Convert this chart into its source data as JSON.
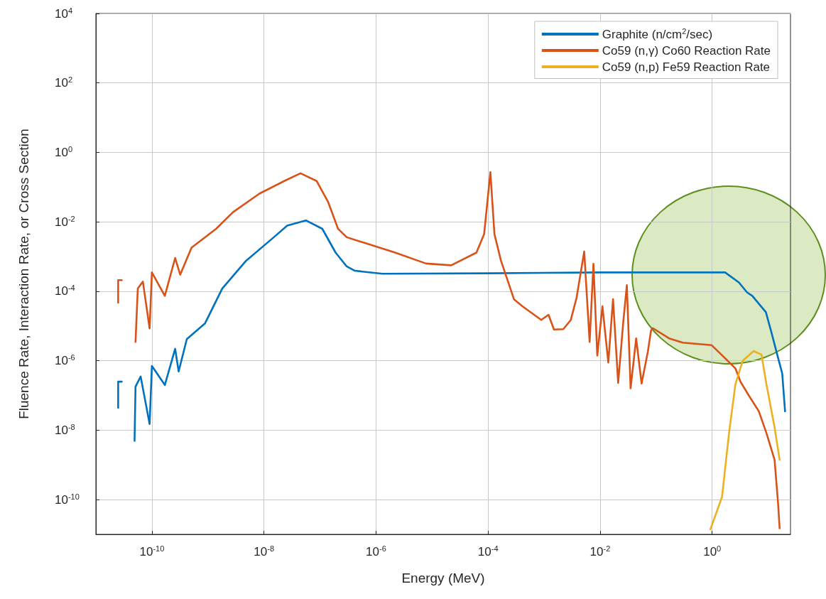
{
  "chart_data": {
    "type": "line",
    "xlabel": "Energy (MeV)",
    "ylabel": "Fluence Rate, Interaction Rate, or Cross Section",
    "log": "xy",
    "grid": true,
    "legend": "top right",
    "marker": "none",
    "line_style": "solid",
    "xlim": [
      1e-11,
      25
    ],
    "ylim": [
      1e-11,
      10000
    ],
    "xticks": [
      {
        "value": 1e-10,
        "label": "10$^{-10}$"
      },
      {
        "value": 1e-08,
        "label": "10$^{-8}$"
      },
      {
        "value": 1e-06,
        "label": "10$^{-6}$"
      },
      {
        "value": 0.0001,
        "label": "10$^{-4}$"
      },
      {
        "value": 0.01,
        "label": "10$^{-2}$"
      },
      {
        "value": 1,
        "label": "10$^{0}$"
      }
    ],
    "yticks": [
      {
        "value": 1e-10,
        "label": "10$^{-10}$"
      },
      {
        "value": 1e-08,
        "label": "10$^{-8}$"
      },
      {
        "value": 1e-06,
        "label": "10$^{-6}$"
      },
      {
        "value": 0.0001,
        "label": "10$^{-4}$"
      },
      {
        "value": 0.01,
        "label": "10$^{-2}$"
      },
      {
        "value": 1,
        "label": "10$^{0}$"
      },
      {
        "value": 100,
        "label": "10$^{2}$"
      },
      {
        "value": 10000,
        "label": "10$^{4}$"
      }
    ],
    "series": [
      {
        "name": "Graphite (n/cm$^{2}$/sec)",
        "color": "#0072bd",
        "x": [
          2.5e-11,
          2.5e-11,
          2.9e-11,
          4e-11,
          4.9e-11,
          5.1e-11,
          6.3e-11,
          9.1e-11,
          1e-10,
          1.7e-10,
          2.6e-10,
          3e-10,
          4.2e-10,
          8.9e-10,
          1.8e-09,
          4.8e-09,
          1.5e-08,
          2.6e-08,
          5.6e-08,
          1.1e-07,
          1.9e-07,
          3e-07,
          4.2e-07,
          1.3e-06,
          0.0001,
          0.01,
          1.7,
          3.0,
          4.2,
          5.2,
          9.1,
          11.5,
          14.5,
          17.8,
          20
        ],
        "values": [
          4.4e-08,
          2.5e-07,
          2.5e-07,
          null,
          4.9e-09,
          1.8e-07,
          3.5e-07,
          1.5e-08,
          7.1e-07,
          2e-07,
          2.2e-06,
          4.9e-07,
          4.2e-06,
          1.2e-05,
          0.00012,
          0.00076,
          0.0036,
          0.0078,
          0.011,
          0.0063,
          0.0013,
          0.00052,
          0.00039,
          0.00032,
          0.00033,
          0.00035,
          0.00035,
          0.00018,
          9.3e-05,
          7.4e-05,
          2.5e-05,
          6.3e-06,
          1.5e-06,
          4.3e-07,
          3.5e-08
        ]
      },
      {
        "name": "Co59 (n,γ) Co60 Reaction Rate",
        "color": "#d95319",
        "x": [
          2.5e-11,
          2.5e-11,
          2.9e-11,
          4e-11,
          5.1e-11,
          5.6e-11,
          6.9e-11,
          9.1e-11,
          1e-10,
          1.7e-10,
          2.6e-10,
          3.2e-10,
          5.1e-10,
          1.4e-09,
          2.8e-09,
          8.3e-09,
          2.3e-08,
          4.5e-08,
          8.7e-08,
          1.4e-07,
          2.1e-07,
          3e-07,
          2.2e-06,
          7.8e-06,
          2.2e-05,
          6.2e-05,
          8.5e-05,
          0.00011,
          0.00013,
          0.00017,
          0.00029,
          0.00041,
          0.00089,
          0.0012,
          0.0015,
          0.0022,
          0.003,
          0.0038,
          0.0052,
          0.0065,
          0.0076,
          0.0089,
          0.011,
          0.014,
          0.017,
          0.021,
          0.026,
          0.03,
          0.035,
          0.044,
          0.055,
          0.071,
          0.081,
          0.087,
          0.17,
          0.3,
          0.98,
          1.6,
          2.6,
          3.2,
          4.5,
          6.8,
          9.3,
          13,
          15,
          16
        ],
        "values": [
          4.7e-05,
          0.00021,
          0.00021,
          null,
          3.5e-06,
          0.00012,
          0.00019,
          8.5e-06,
          0.00035,
          7.4e-05,
          0.00091,
          0.0003,
          0.0018,
          0.0063,
          0.019,
          0.065,
          0.15,
          0.25,
          0.15,
          0.037,
          0.0063,
          0.0036,
          0.0013,
          0.00063,
          0.00056,
          0.0013,
          0.0044,
          0.27,
          0.0044,
          0.00076,
          5.9e-05,
          3.7e-05,
          1.5e-05,
          2.1e-05,
          7.9e-06,
          8.1e-06,
          1.5e-05,
          6.5e-05,
          0.0014,
          3.5e-06,
          0.00062,
          1.4e-06,
          3.7e-05,
          8.9e-07,
          5.9e-05,
          2.3e-07,
          1.4e-05,
          0.00015,
          1.6e-07,
          4.4e-06,
          2.2e-07,
          1.8e-06,
          7.4e-06,
          8.7e-06,
          4.4e-06,
          3.3e-06,
          2.8e-06,
          1.3e-06,
          6e-07,
          2.5e-07,
          1e-07,
          3.5e-08,
          8.3e-09,
          1.4e-09,
          7.9e-11,
          1.5e-11
        ]
      },
      {
        "name": "Co59 (n,p) Fe59 Reaction Rate",
        "color": "#edb120",
        "x": [
          0.93,
          1.5,
          2.0,
          2.6,
          3.5,
          5.5,
          7.6,
          9.3,
          13,
          16
        ],
        "values": [
          1.4e-11,
          1.2e-10,
          8.3e-09,
          2.1e-07,
          1e-06,
          1.9e-06,
          1.5e-06,
          2.1e-07,
          1.2e-08,
          1.4e-09
        ]
      }
    ]
  }
}
